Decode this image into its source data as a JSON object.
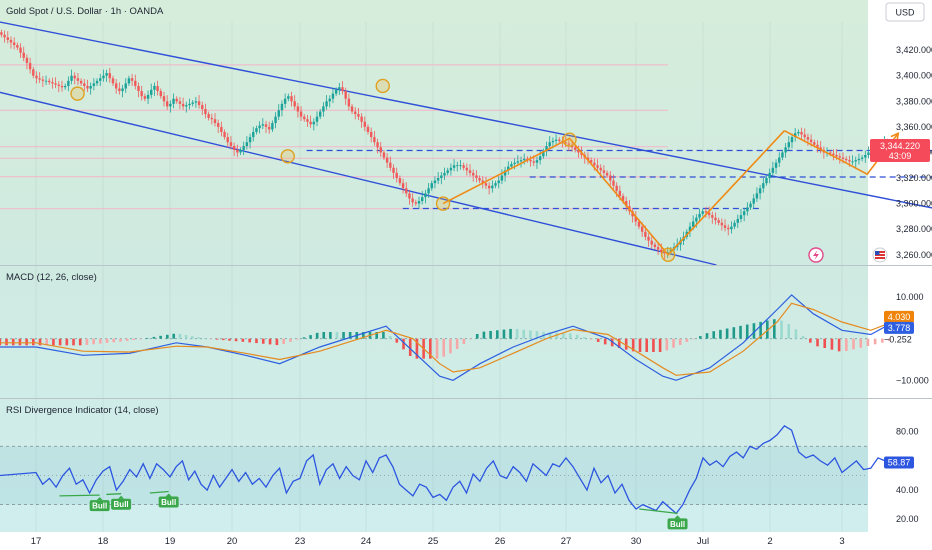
{
  "header": {
    "symbol_title": "Gold Spot / U.S. Dollar · 1h · OANDA",
    "currency": "USD"
  },
  "colors": {
    "bg_top": "#d7ecd9",
    "bg_mid": "#c9e8e6",
    "bg_bottom": "#d4f0f0",
    "channel": "#2f4fd8",
    "zigzag": "#f08a14",
    "support": "#2f4fd8",
    "up": "#1ba39a",
    "down": "#f05a5a",
    "pink": "#f4b4c8",
    "macd_line": "#2d5fe0",
    "signal_line": "#e58a1e",
    "rsi_line": "#2c55e0",
    "price_tag": "#f44a5a",
    "bull_badge": "#3aa84a"
  },
  "x_axis": {
    "labels": [
      "17",
      "18",
      "19",
      "20",
      "23",
      "24",
      "25",
      "26",
      "27",
      "30",
      "Jul",
      "2",
      "3"
    ]
  },
  "price_panel": {
    "ylim": [
      3252,
      3442
    ],
    "ticks": [
      3420,
      3400,
      3380,
      3360,
      3340,
      3320,
      3300,
      3280,
      3260
    ],
    "tick_labels": [
      "3,420.000",
      "3,400.000",
      "3,380.000",
      "3,360.000",
      "3,340.000",
      "3,320.000",
      "3,300.000",
      "3,280.000",
      "3,260.000"
    ],
    "last_price": 3344.22,
    "last_price_label": "3,344.220",
    "countdown": "43:09",
    "pink_levels": [
      3408.5,
      3373,
      3344.5,
      3335.5,
      3321,
      3296
    ],
    "dashed_levels": [
      {
        "price": 3341.5,
        "from": 4.1,
        "to": 13.4
      },
      {
        "price": 3320.8,
        "from": 7.45,
        "to": 13.4
      },
      {
        "price": 3296.2,
        "from": 5.55,
        "to": 10.85
      }
    ],
    "channel_upper": [
      [
        0,
        3442
      ],
      [
        13.4,
        3295
      ]
    ],
    "channel_lower": [
      [
        0,
        3387
      ],
      [
        10.2,
        3252
      ]
    ],
    "zigzag_swing": [
      [
        6.15,
        3300
      ],
      [
        8.05,
        3351
      ],
      [
        9.48,
        3260
      ],
      [
        11.2,
        3357
      ]
    ],
    "zigzag_projection": [
      [
        11.2,
        3357
      ],
      [
        11.95,
        3335
      ],
      [
        12.35,
        3323
      ],
      [
        12.78,
        3355
      ]
    ],
    "circles": [
      [
        0.62,
        3386
      ],
      [
        5.25,
        3392
      ],
      [
        3.82,
        3337
      ],
      [
        6.15,
        3300
      ],
      [
        8.05,
        3350
      ],
      [
        9.48,
        3260
      ]
    ],
    "closes": [
      3432,
      3430,
      3428,
      3426,
      3424,
      3422,
      3418,
      3414,
      3410,
      3405,
      3400,
      3398,
      3397,
      3396,
      3396,
      3395,
      3394,
      3393,
      3392,
      3391,
      3392,
      3396,
      3400,
      3398,
      3396,
      3394,
      3392,
      3390,
      3392,
      3394,
      3396,
      3398,
      3400,
      3402,
      3398,
      3394,
      3390,
      3388,
      3390,
      3394,
      3398,
      3396,
      3392,
      3388,
      3384,
      3382,
      3385,
      3389,
      3392,
      3388,
      3384,
      3380,
      3376,
      3378,
      3382,
      3380,
      3378,
      3376,
      3377,
      3378,
      3379,
      3380,
      3377,
      3374,
      3370,
      3367,
      3366,
      3363,
      3360,
      3356,
      3352,
      3348,
      3345,
      3342,
      3340,
      3342,
      3345,
      3348,
      3352,
      3356,
      3359,
      3361,
      3362,
      3360,
      3358,
      3363,
      3368,
      3373,
      3378,
      3382,
      3384,
      3380,
      3376,
      3372,
      3368,
      3366,
      3364,
      3362,
      3364,
      3368,
      3372,
      3376,
      3380,
      3382,
      3386,
      3389,
      3391,
      3388,
      3382,
      3376,
      3372,
      3370,
      3368,
      3364,
      3360,
      3356,
      3352,
      3348,
      3344,
      3340,
      3336,
      3332,
      3328,
      3324,
      3320,
      3316,
      3312,
      3308,
      3304,
      3301,
      3300,
      3302,
      3305,
      3308,
      3312,
      3316,
      3318,
      3320,
      3322,
      3324,
      3326,
      3328,
      3330,
      3330,
      3330,
      3328,
      3326,
      3324,
      3322,
      3320,
      3318,
      3316,
      3314,
      3312,
      3314,
      3316,
      3318,
      3322,
      3326,
      3329,
      3331,
      3332,
      3333,
      3334,
      3335,
      3334,
      3333,
      3332,
      3334,
      3337,
      3341,
      3345,
      3348,
      3349,
      3350,
      3349,
      3348,
      3347,
      3346,
      3344,
      3342,
      3340,
      3338,
      3336,
      3334,
      3332,
      3330,
      3328,
      3326,
      3324,
      3322,
      3318,
      3314,
      3310,
      3306,
      3302,
      3298,
      3294,
      3290,
      3286,
      3282,
      3278,
      3274,
      3271,
      3268,
      3266,
      3264,
      3262,
      3261,
      3262,
      3264,
      3266,
      3268,
      3271,
      3274,
      3278,
      3282,
      3286,
      3289,
      3292,
      3294,
      3293,
      3291,
      3289,
      3287,
      3285,
      3283,
      3281,
      3280,
      3282,
      3285,
      3288,
      3291,
      3294,
      3297,
      3300,
      3304,
      3308,
      3312,
      3316,
      3320,
      3324,
      3328,
      3332,
      3336,
      3340,
      3344,
      3348,
      3352,
      3355,
      3356,
      3354,
      3352,
      3350,
      3348,
      3346,
      3344,
      3342,
      3340,
      3340,
      3339,
      3338,
      3337,
      3336,
      3335,
      3334,
      3333,
      3333,
      3334,
      3335,
      3336,
      3338,
      3340,
      3342,
      3344,
      3346,
      3347,
      3348,
      3346,
      3344.2
    ]
  },
  "macd_panel": {
    "indicator_label": "MACD (12, 26, close)",
    "ylim": [
      -14,
      16
    ],
    "ticks": [
      10,
      -10
    ],
    "tick_labels": [
      "10.000",
      "−10.000"
    ],
    "value_tags": [
      {
        "label": "4.030",
        "value": 4.03
      },
      {
        "label": "3.778",
        "value": 3.778
      },
      {
        "label": "−0.252",
        "value": -0.252
      }
    ],
    "macd": [
      [
        0,
        -2
      ],
      [
        0.7,
        -4
      ],
      [
        1.4,
        -3.5
      ],
      [
        2.1,
        -1
      ],
      [
        2.6,
        -2
      ],
      [
        3.2,
        -4
      ],
      [
        3.7,
        -6
      ],
      [
        4.3,
        -2
      ],
      [
        4.9,
        1
      ],
      [
        5.3,
        3
      ],
      [
        5.7,
        -3
      ],
      [
        6.1,
        -9
      ],
      [
        6.3,
        -10
      ],
      [
        6.7,
        -6
      ],
      [
        7.2,
        -2
      ],
      [
        7.7,
        1
      ],
      [
        8.1,
        3
      ],
      [
        8.6,
        0
      ],
      [
        9.0,
        -5
      ],
      [
        9.4,
        -9
      ],
      [
        9.6,
        -10
      ],
      [
        10.1,
        -7
      ],
      [
        10.6,
        -1
      ],
      [
        11.1,
        7
      ],
      [
        11.3,
        10.5
      ],
      [
        11.6,
        6
      ],
      [
        12.0,
        2
      ],
      [
        12.4,
        1
      ],
      [
        12.7,
        3.8
      ]
    ],
    "signal": [
      [
        0,
        -1
      ],
      [
        0.7,
        -3
      ],
      [
        1.4,
        -3.2
      ],
      [
        2.1,
        -1.8
      ],
      [
        2.6,
        -2
      ],
      [
        3.2,
        -3.5
      ],
      [
        3.7,
        -5
      ],
      [
        4.3,
        -3
      ],
      [
        4.9,
        0
      ],
      [
        5.3,
        2
      ],
      [
        5.7,
        0
      ],
      [
        6.1,
        -6
      ],
      [
        6.3,
        -8
      ],
      [
        6.7,
        -7
      ],
      [
        7.2,
        -3.5
      ],
      [
        7.7,
        0
      ],
      [
        8.1,
        2.2
      ],
      [
        8.6,
        1
      ],
      [
        9.0,
        -3
      ],
      [
        9.4,
        -7
      ],
      [
        9.6,
        -8.8
      ],
      [
        10.1,
        -8
      ],
      [
        10.6,
        -3
      ],
      [
        11.1,
        4
      ],
      [
        11.3,
        8.5
      ],
      [
        11.6,
        7
      ],
      [
        12.0,
        4
      ],
      [
        12.4,
        2
      ],
      [
        12.7,
        4.03
      ]
    ]
  },
  "rsi_panel": {
    "indicator_label": "RSI Divergence Indicator (14, close)",
    "ylim": [
      14,
      88
    ],
    "ticks": [
      80,
      40,
      20
    ],
    "tick_labels": [
      "80.00",
      "40.00",
      "20.00"
    ],
    "upper_band": 70,
    "lower_band": 30,
    "mid_band": 50,
    "last_value_label": "58.87",
    "last_value": 58.87,
    "bull_labels": [
      {
        "text": "Bull",
        "x": 0.95,
        "rsi": 36.5
      },
      {
        "text": "Bull",
        "x": 1.27,
        "rsi": 37.5
      },
      {
        "text": "Bull",
        "x": 1.98,
        "rsi": 39
      },
      {
        "text": "Bull",
        "x": 9.62,
        "rsi": 24
      }
    ],
    "rsi": [
      [
        0,
        52
      ],
      [
        0.1,
        44
      ],
      [
        0.2,
        48
      ],
      [
        0.3,
        42
      ],
      [
        0.4,
        50
      ],
      [
        0.5,
        55
      ],
      [
        0.6,
        44
      ],
      [
        0.7,
        47
      ],
      [
        0.8,
        38
      ],
      [
        0.9,
        47
      ],
      [
        1.0,
        53
      ],
      [
        1.1,
        56
      ],
      [
        1.2,
        40
      ],
      [
        1.3,
        46
      ],
      [
        1.4,
        54
      ],
      [
        1.5,
        49
      ],
      [
        1.6,
        58
      ],
      [
        1.7,
        48
      ],
      [
        1.8,
        58
      ],
      [
        1.9,
        54
      ],
      [
        2.0,
        49
      ],
      [
        2.1,
        56
      ],
      [
        2.2,
        60
      ],
      [
        2.3,
        47
      ],
      [
        2.4,
        53
      ],
      [
        2.5,
        44
      ],
      [
        2.6,
        40
      ],
      [
        2.7,
        50
      ],
      [
        2.8,
        42
      ],
      [
        2.9,
        48
      ],
      [
        3.0,
        54
      ],
      [
        3.1,
        46
      ],
      [
        3.2,
        52
      ],
      [
        3.3,
        44
      ],
      [
        3.4,
        48
      ],
      [
        3.5,
        42
      ],
      [
        3.6,
        50
      ],
      [
        3.7,
        55
      ],
      [
        3.8,
        38
      ],
      [
        3.9,
        46
      ],
      [
        4.0,
        48
      ],
      [
        4.1,
        60
      ],
      [
        4.2,
        64
      ],
      [
        4.3,
        44
      ],
      [
        4.4,
        54
      ],
      [
        4.5,
        58
      ],
      [
        4.6,
        48
      ],
      [
        4.7,
        56
      ],
      [
        4.8,
        50
      ],
      [
        4.9,
        47
      ],
      [
        5.0,
        60
      ],
      [
        5.1,
        52
      ],
      [
        5.2,
        62
      ],
      [
        5.3,
        64
      ],
      [
        5.4,
        56
      ],
      [
        5.5,
        44
      ],
      [
        5.6,
        40
      ],
      [
        5.7,
        36
      ],
      [
        5.8,
        44
      ],
      [
        5.9,
        42
      ],
      [
        6.0,
        35
      ],
      [
        6.1,
        37
      ],
      [
        6.2,
        33
      ],
      [
        6.3,
        42
      ],
      [
        6.4,
        46
      ],
      [
        6.5,
        38
      ],
      [
        6.6,
        51
      ],
      [
        6.7,
        46
      ],
      [
        6.8,
        55
      ],
      [
        6.9,
        60
      ],
      [
        7.0,
        50
      ],
      [
        7.1,
        48
      ],
      [
        7.2,
        56
      ],
      [
        7.3,
        52
      ],
      [
        7.4,
        46
      ],
      [
        7.5,
        58
      ],
      [
        7.6,
        54
      ],
      [
        7.7,
        50
      ],
      [
        7.8,
        58
      ],
      [
        7.9,
        56
      ],
      [
        8.0,
        62
      ],
      [
        8.1,
        56
      ],
      [
        8.2,
        48
      ],
      [
        8.3,
        40
      ],
      [
        8.4,
        55
      ],
      [
        8.5,
        45
      ],
      [
        8.6,
        50
      ],
      [
        8.7,
        38
      ],
      [
        8.8,
        44
      ],
      [
        8.9,
        33
      ],
      [
        9.0,
        27
      ],
      [
        9.1,
        30
      ],
      [
        9.2,
        28
      ],
      [
        9.3,
        26
      ],
      [
        9.4,
        32
      ],
      [
        9.5,
        28
      ],
      [
        9.6,
        24
      ],
      [
        9.7,
        30
      ],
      [
        9.8,
        40
      ],
      [
        9.9,
        48
      ],
      [
        10.0,
        62
      ],
      [
        10.1,
        57
      ],
      [
        10.2,
        60
      ],
      [
        10.3,
        56
      ],
      [
        10.4,
        63
      ],
      [
        10.5,
        66
      ],
      [
        10.6,
        62
      ],
      [
        10.7,
        70
      ],
      [
        10.8,
        68
      ],
      [
        10.9,
        72
      ],
      [
        11.0,
        74
      ],
      [
        11.1,
        78
      ],
      [
        11.2,
        84
      ],
      [
        11.3,
        81
      ],
      [
        11.4,
        66
      ],
      [
        11.5,
        62
      ],
      [
        11.6,
        64
      ],
      [
        11.7,
        60
      ],
      [
        11.8,
        57
      ],
      [
        11.9,
        62
      ],
      [
        12.0,
        52
      ],
      [
        12.1,
        56
      ],
      [
        12.2,
        60
      ],
      [
        12.3,
        54
      ],
      [
        12.4,
        55
      ],
      [
        12.5,
        62
      ],
      [
        12.6,
        60
      ],
      [
        12.7,
        58.87
      ]
    ]
  }
}
